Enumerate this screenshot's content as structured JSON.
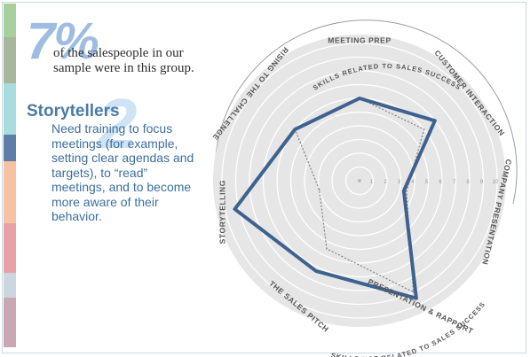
{
  "colors": {
    "side_strips": [
      "#a7d09c",
      "#a6b79d",
      "#a9dcdf",
      "#5e7ea8",
      "#f7c2a4",
      "#e7a2a7",
      "#cdd5df",
      "#c9a8b4"
    ],
    "disc": "#e6e6e6",
    "group_series": "#3e6290",
    "overall_series": "#7f7f7f",
    "accent": "#4a7ba7"
  },
  "stat": {
    "percent": "7%",
    "text": "of the salespeople in our sample were in this group."
  },
  "group": {
    "number": "2",
    "title": "Storytellers",
    "description": "Need training to focus meetings (for example, setting clear agendas and targets), to “read” meetings, and to become more aware of their behavior."
  },
  "chart_data": {
    "type": "radar",
    "axes": [
      "MEETING PREP",
      "CUSTOMER INTERACTION",
      "COMPANY PRESENTATION",
      "PRESENTATION & RAPPORT",
      "THE SALES PITCH",
      "STORYTELLING",
      "RISING TO THE CHALLENGE"
    ],
    "axis_groups": [
      "SKILLS RELATED TO SALES SUCCESS",
      "SKILLS NOT RELATED TO SALES SUCCESS"
    ],
    "scale_ticks": [
      "1",
      "2",
      "3",
      "4",
      "5",
      "6",
      "7",
      "8",
      "9",
      "10"
    ],
    "range": [
      0,
      10
    ],
    "series": [
      {
        "values": [
          6.0,
          7.0,
          3.3,
          9.5,
          7.3,
          9.3,
          6.0
        ],
        "style": "solid"
      },
      {
        "values": [
          6.0,
          6.0,
          3.5,
          9.0,
          5.5,
          3.0,
          6.0
        ],
        "style": "dotted"
      }
    ]
  }
}
